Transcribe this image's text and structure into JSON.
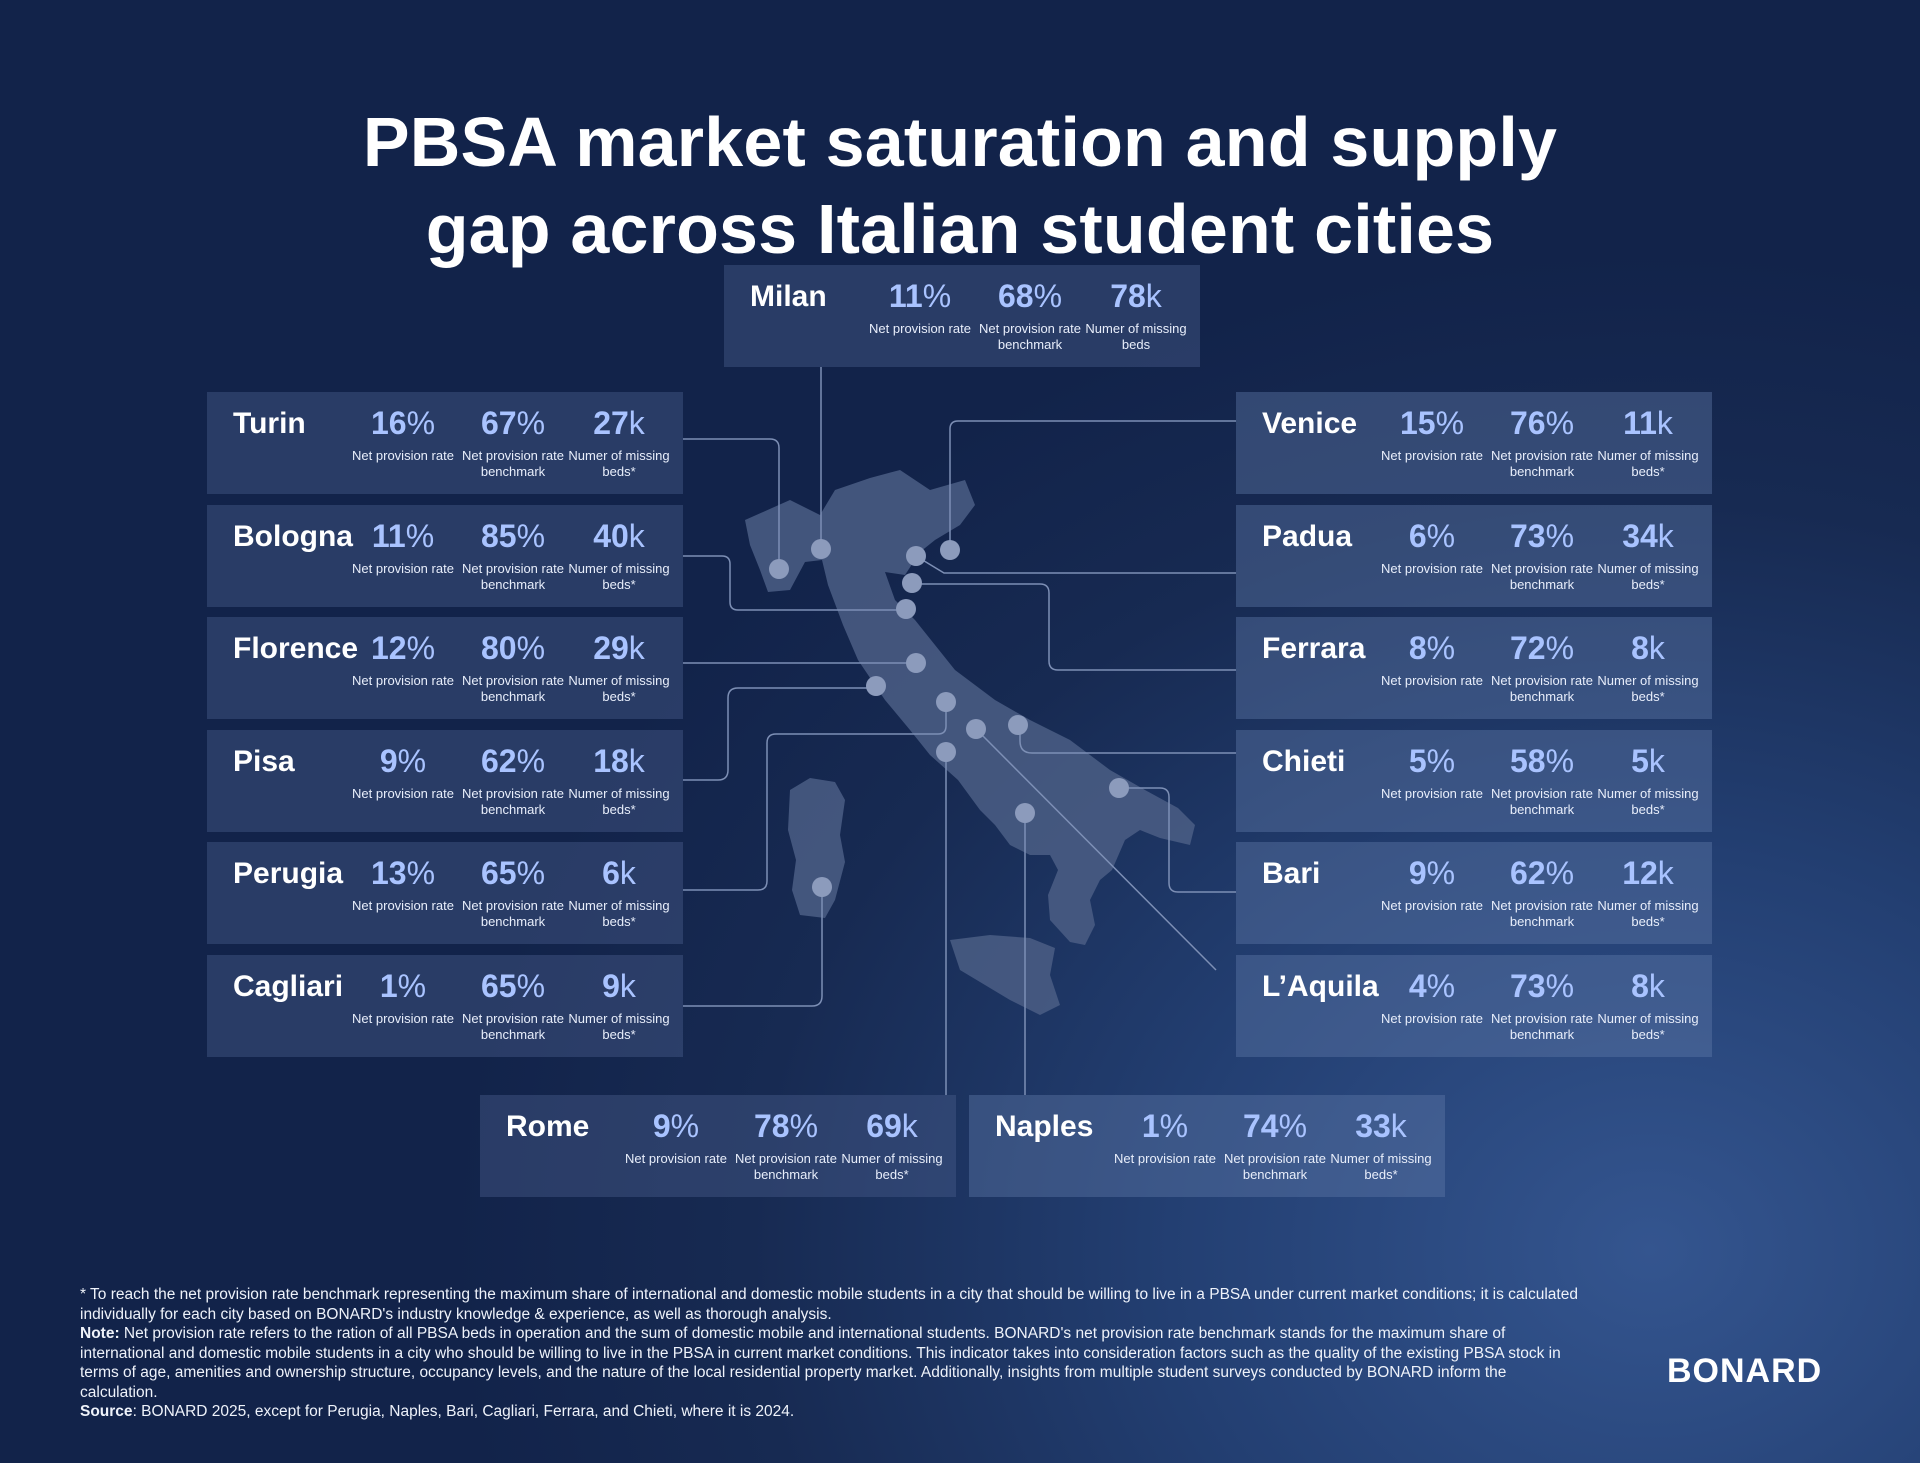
{
  "title": {
    "line1": "PBSA market saturation and supply",
    "line2": "gap across Italian student cities"
  },
  "labels": {
    "rate": "Net provision rate",
    "benchmark": "Net provision rate benchmark",
    "missing": "Numer of missing beds",
    "missing_star": "Numer of missing beds*"
  },
  "cities": {
    "milan": {
      "name": "Milan",
      "rate": "11",
      "benchmark": "68",
      "missing": "78"
    },
    "turin": {
      "name": "Turin",
      "rate": "16",
      "benchmark": "67",
      "missing": "27"
    },
    "bologna": {
      "name": "Bologna",
      "rate": "11",
      "benchmark": "85",
      "missing": "40"
    },
    "florence": {
      "name": "Florence",
      "rate": "12",
      "benchmark": "80",
      "missing": "29"
    },
    "pisa": {
      "name": "Pisa",
      "rate": "9",
      "benchmark": "62",
      "missing": "18"
    },
    "perugia": {
      "name": "Perugia",
      "rate": "13",
      "benchmark": "65",
      "missing": "6"
    },
    "cagliari": {
      "name": "Cagliari",
      "rate": "1",
      "benchmark": "65",
      "missing": "9"
    },
    "venice": {
      "name": "Venice",
      "rate": "15",
      "benchmark": "76",
      "missing": "11"
    },
    "padua": {
      "name": "Padua",
      "rate": "6",
      "benchmark": "73",
      "missing": "34"
    },
    "ferrara": {
      "name": "Ferrara",
      "rate": "8",
      "benchmark": "72",
      "missing": "8"
    },
    "chieti": {
      "name": "Chieti",
      "rate": "5",
      "benchmark": "58",
      "missing": "5"
    },
    "bari": {
      "name": "Bari",
      "rate": "9",
      "benchmark": "62",
      "missing": "12"
    },
    "laquila": {
      "name": "L’Aquila",
      "rate": "4",
      "benchmark": "73",
      "missing": "8"
    },
    "rome": {
      "name": "Rome",
      "rate": "9",
      "benchmark": "78",
      "missing": "69"
    },
    "naples": {
      "name": "Naples",
      "rate": "1",
      "benchmark": "74",
      "missing": "33"
    }
  },
  "units": {
    "percent": "%",
    "thousand": "k"
  },
  "footnote": {
    "asterisk": "* To reach the net provision rate benchmark representing the maximum share of international and domestic mobile students in a city that should be willing to live in a PBSA under current market conditions; it is calculated individually for each city based on BONARD's industry knowledge & experience, as well as thorough analysis.",
    "note_label": "Note:",
    "note": "Net provision rate refers to the ration of all PBSA beds in operation and the sum of domestic mobile and international students. BONARD's net provision rate benchmark stands for the maximum share of international and domestic mobile students in a city who should be willing to live in the PBSA in current market conditions. This indicator takes into consideration factors such as the quality of the existing PBSA stock in terms of age, amenities and ownership structure, occupancy levels, and the nature of the local residential property market. Additionally, insights from multiple student surveys conducted by BONARD inform the calculation.",
    "source_label": "Source",
    "source": ": BONARD 2025, except for Perugia, Naples, Bari, Cagliari, Ferrara, and Chieti, where it is 2024."
  },
  "logo": "BONARD",
  "colors": {
    "accent": "#a9c3ff",
    "background": "#172a52",
    "map": "#4b5e85"
  }
}
